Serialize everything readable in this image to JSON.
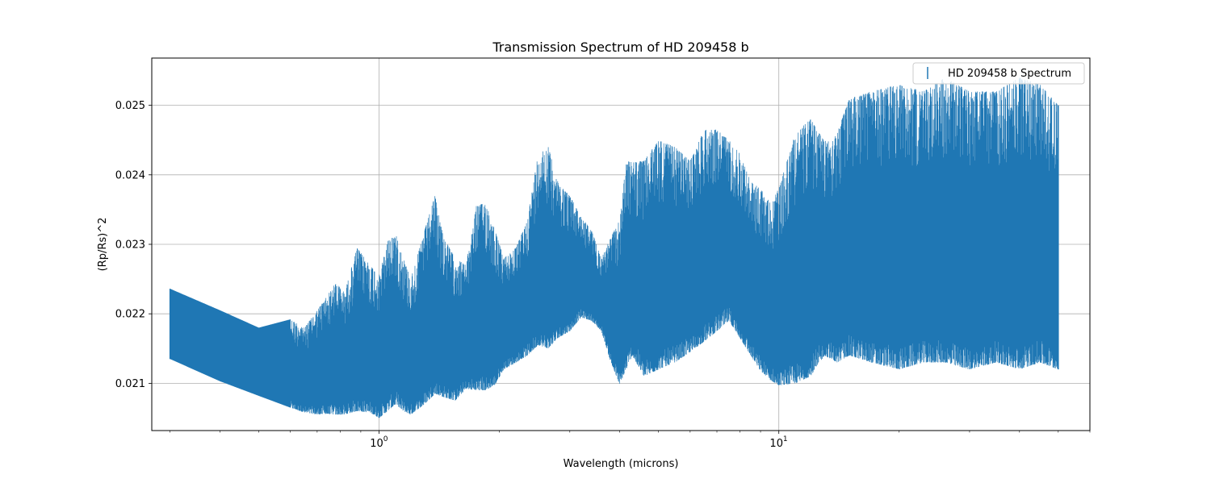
{
  "chart_data": {
    "type": "errorbar",
    "title": "Transmission Spectrum of HD 209458 b",
    "xlabel": "Wavelength (microns)",
    "ylabel": "(Rp/Rs)^2",
    "xscale": "log",
    "xlim": [
      0.27,
      60
    ],
    "ylim": [
      0.02032,
      0.02568
    ],
    "grid": true,
    "legend_position": "top-right",
    "colors": {
      "series": "#1f77b4"
    },
    "x_ticks": [
      {
        "value": 1,
        "base": "10",
        "exponent": "0"
      },
      {
        "value": 10,
        "base": "10",
        "exponent": "1"
      }
    ],
    "y_ticks": [
      {
        "value": 0.021,
        "label": "0.021"
      },
      {
        "value": 0.022,
        "label": "0.022"
      },
      {
        "value": 0.023,
        "label": "0.023"
      },
      {
        "value": 0.024,
        "label": "0.024"
      },
      {
        "value": 0.025,
        "label": "0.025"
      }
    ],
    "series": [
      {
        "name": "HD 209458 b Spectrum",
        "wavelength": [
          0.3,
          0.4,
          0.5,
          0.6,
          0.65,
          0.7,
          0.73,
          0.78,
          0.82,
          0.88,
          0.95,
          1.0,
          1.05,
          1.1,
          1.15,
          1.2,
          1.3,
          1.38,
          1.45,
          1.55,
          1.65,
          1.75,
          1.85,
          1.95,
          2.05,
          2.2,
          2.35,
          2.5,
          2.65,
          2.8,
          3.0,
          3.2,
          3.4,
          3.6,
          3.8,
          4.0,
          4.15,
          4.3,
          4.6,
          5.0,
          5.5,
          6.0,
          6.5,
          7.0,
          7.5,
          8.0,
          8.5,
          9.0,
          9.5,
          10.0,
          11.0,
          12.0,
          13.0,
          14.0,
          15.0,
          17.0,
          20.0,
          23.0,
          26.0,
          30.0,
          35.0,
          40.0,
          45.0,
          50.0
        ],
        "lower": [
          0.02135,
          0.02103,
          0.02082,
          0.02065,
          0.02058,
          0.02055,
          0.02056,
          0.02055,
          0.02055,
          0.0206,
          0.02058,
          0.0205,
          0.0206,
          0.0207,
          0.0206,
          0.02055,
          0.0207,
          0.02085,
          0.0208,
          0.02075,
          0.02092,
          0.0209,
          0.0209,
          0.02098,
          0.0212,
          0.0213,
          0.0214,
          0.02155,
          0.0215,
          0.02165,
          0.02175,
          0.02195,
          0.0219,
          0.02175,
          0.0213,
          0.02098,
          0.0212,
          0.0214,
          0.0211,
          0.0212,
          0.0213,
          0.02145,
          0.0216,
          0.02175,
          0.0219,
          0.02165,
          0.0214,
          0.02118,
          0.02105,
          0.02097,
          0.021,
          0.0211,
          0.0214,
          0.0213,
          0.0214,
          0.0213,
          0.0212,
          0.0213,
          0.0213,
          0.0212,
          0.0213,
          0.0212,
          0.0213,
          0.0212
        ],
        "upper": [
          0.02236,
          0.02205,
          0.0218,
          0.02192,
          0.0218,
          0.02205,
          0.0222,
          0.02245,
          0.0223,
          0.02295,
          0.0227,
          0.02255,
          0.02305,
          0.02315,
          0.0228,
          0.0225,
          0.0232,
          0.0237,
          0.0231,
          0.0228,
          0.0227,
          0.02355,
          0.0236,
          0.0232,
          0.0228,
          0.02295,
          0.02335,
          0.0243,
          0.0244,
          0.0239,
          0.0237,
          0.0234,
          0.0232,
          0.0228,
          0.0231,
          0.02335,
          0.0242,
          0.02418,
          0.0242,
          0.0245,
          0.0244,
          0.0242,
          0.02465,
          0.02465,
          0.0245,
          0.0243,
          0.0239,
          0.0238,
          0.0236,
          0.0238,
          0.0246,
          0.0248,
          0.0245,
          0.0246,
          0.0251,
          0.0252,
          0.0253,
          0.0252,
          0.0254,
          0.0252,
          0.0252,
          0.0254,
          0.0253,
          0.025
        ]
      }
    ]
  }
}
